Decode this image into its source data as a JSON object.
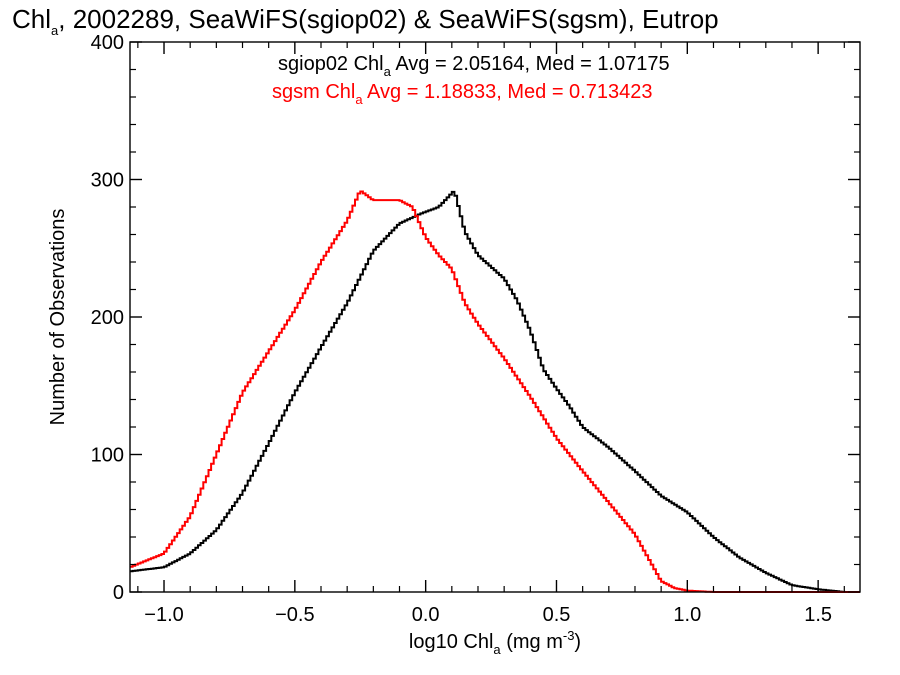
{
  "chart_data": {
    "type": "line",
    "drawstyle": "steps-mid",
    "title": {
      "prefix": "Chl",
      "sub": "a",
      "rest": ", 2002289, SeaWiFS(sgiop02) & SeaWiFS(sgsm), Eutrop"
    },
    "xlabel": {
      "prefix": "log10 Chl",
      "sub": "a",
      "mid": " (mg m",
      "sup": "-3",
      "end": ")"
    },
    "ylabel": "Number of Observations",
    "xlim": [
      -1.13,
      1.66
    ],
    "ylim": [
      0,
      400
    ],
    "xticks": [
      -1.0,
      -0.5,
      0.0,
      0.5,
      1.0,
      1.5
    ],
    "xtick_labels": [
      "−1.0",
      "−0.5",
      "0.0",
      "0.5",
      "1.0",
      "1.5"
    ],
    "yticks": [
      0,
      100,
      200,
      300,
      400
    ],
    "ytick_labels": [
      "0",
      "100",
      "200",
      "300",
      "400"
    ],
    "grid": false,
    "series": [
      {
        "name": "sgiop02",
        "color": "#000000",
        "stats": {
          "prefix": "sgiop02 Chl",
          "sub": "a",
          "rest": " Avg = 2.05164, Med = 1.07175"
        },
        "points": [
          [
            -1.13,
            15
          ],
          [
            -1.0,
            18
          ],
          [
            -0.9,
            28
          ],
          [
            -0.8,
            45
          ],
          [
            -0.7,
            72
          ],
          [
            -0.6,
            108
          ],
          [
            -0.5,
            145
          ],
          [
            -0.4,
            178
          ],
          [
            -0.3,
            210
          ],
          [
            -0.2,
            248
          ],
          [
            -0.1,
            268
          ],
          [
            -0.02,
            275
          ],
          [
            0.05,
            280
          ],
          [
            0.11,
            292
          ],
          [
            0.15,
            262
          ],
          [
            0.2,
            245
          ],
          [
            0.3,
            228
          ],
          [
            0.35,
            212
          ],
          [
            0.4,
            190
          ],
          [
            0.45,
            162
          ],
          [
            0.5,
            148
          ],
          [
            0.55,
            135
          ],
          [
            0.6,
            120
          ],
          [
            0.7,
            105
          ],
          [
            0.8,
            88
          ],
          [
            0.9,
            70
          ],
          [
            1.0,
            58
          ],
          [
            1.1,
            40
          ],
          [
            1.2,
            25
          ],
          [
            1.3,
            14
          ],
          [
            1.4,
            5
          ],
          [
            1.5,
            2
          ],
          [
            1.6,
            0
          ],
          [
            1.66,
            0
          ]
        ]
      },
      {
        "name": "sgsm",
        "color": "#ff0000",
        "stats": {
          "prefix": "sgsm Chl",
          "sub": "a",
          "rest": " Avg = 1.18833, Med = 0.713423"
        },
        "points": [
          [
            -1.13,
            18
          ],
          [
            -1.0,
            28
          ],
          [
            -0.9,
            55
          ],
          [
            -0.8,
            100
          ],
          [
            -0.7,
            145
          ],
          [
            -0.6,
            175
          ],
          [
            -0.5,
            205
          ],
          [
            -0.4,
            240
          ],
          [
            -0.3,
            270
          ],
          [
            -0.25,
            292
          ],
          [
            -0.2,
            285
          ],
          [
            -0.1,
            285
          ],
          [
            -0.05,
            280
          ],
          [
            0.0,
            258
          ],
          [
            0.05,
            245
          ],
          [
            0.1,
            235
          ],
          [
            0.15,
            210
          ],
          [
            0.2,
            195
          ],
          [
            0.3,
            170
          ],
          [
            0.4,
            142
          ],
          [
            0.5,
            112
          ],
          [
            0.6,
            88
          ],
          [
            0.7,
            65
          ],
          [
            0.8,
            42
          ],
          [
            0.85,
            25
          ],
          [
            0.9,
            8
          ],
          [
            0.95,
            3
          ],
          [
            1.0,
            1
          ],
          [
            1.1,
            0
          ],
          [
            1.66,
            0
          ]
        ]
      }
    ]
  }
}
